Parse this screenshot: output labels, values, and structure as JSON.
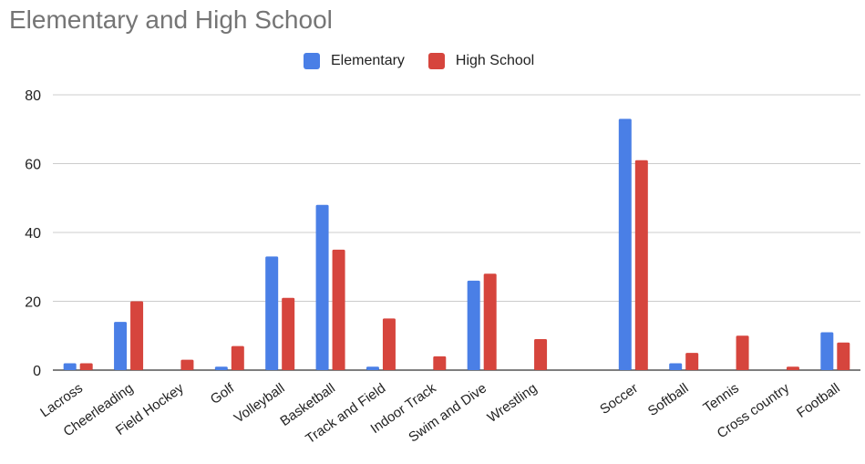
{
  "chart_data": {
    "type": "bar",
    "title": "Elementary and High School",
    "xlabel": "",
    "ylabel": "",
    "ylim": [
      0,
      80
    ],
    "yticks": [
      0,
      20,
      40,
      60,
      80
    ],
    "grid": true,
    "legend_position": "top",
    "categories": [
      "Lacross",
      "Cheerleading",
      "Field Hockey",
      "Golf",
      "Volleyball",
      "Basketball",
      "Track and Field",
      "Indoor Track",
      "Swim and Dive",
      "Wrestling",
      "",
      "Soccer",
      "Softball",
      "Tennis",
      "Cross country",
      "Football"
    ],
    "series": [
      {
        "name": "Elementary",
        "color": "#4a7fe6",
        "values": [
          2,
          14,
          0,
          1,
          33,
          48,
          1,
          0,
          26,
          0,
          0,
          73,
          2,
          0,
          0,
          11
        ]
      },
      {
        "name": "High School",
        "color": "#d6453d",
        "values": [
          2,
          20,
          3,
          7,
          21,
          35,
          15,
          4,
          28,
          9,
          0,
          61,
          5,
          10,
          1,
          8
        ]
      }
    ]
  }
}
